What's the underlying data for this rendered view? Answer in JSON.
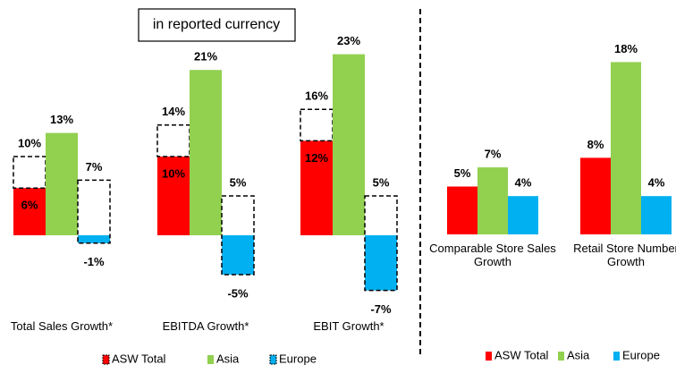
{
  "chart_data": [
    {
      "type": "bar",
      "annotation": "in reported currency",
      "categories": [
        "Total Sales Growth*",
        "EBITDA Growth*",
        "EBIT Growth*"
      ],
      "series": [
        {
          "name": "ASW Total",
          "color": "#ff0000",
          "values": [
            6,
            10,
            12
          ],
          "value_labels": [
            "6%",
            "10%",
            "12%"
          ],
          "outline_values": [
            10,
            14,
            16
          ],
          "outline_value_labels": [
            "10%",
            "14%",
            "16%"
          ]
        },
        {
          "name": "Asia",
          "color": "#92d050",
          "values": [
            13,
            21,
            23
          ],
          "value_labels": [
            "13%",
            "21%",
            "23%"
          ]
        },
        {
          "name": "Europe",
          "color": "#00b0f0",
          "values": [
            -1,
            -5,
            -7
          ],
          "value_labels": [
            "-1%",
            "-5%",
            "-7%"
          ],
          "outline_values": [
            7,
            5,
            5
          ],
          "outline_value_labels": [
            "7%",
            "5%",
            "5%"
          ]
        }
      ]
    },
    {
      "type": "bar",
      "categories": [
        "Comparable Store Sales Growth",
        "Retail Store Number Growth"
      ],
      "series": [
        {
          "name": "ASW Total",
          "color": "#ff0000",
          "values": [
            5,
            8
          ],
          "value_labels": [
            "5%",
            "8%"
          ]
        },
        {
          "name": "Asia",
          "color": "#92d050",
          "values": [
            7,
            18
          ],
          "value_labels": [
            "7%",
            "18%"
          ]
        },
        {
          "name": "Europe",
          "color": "#00b0f0",
          "values": [
            4,
            4
          ],
          "value_labels": [
            "4%",
            "4%"
          ]
        }
      ]
    }
  ]
}
